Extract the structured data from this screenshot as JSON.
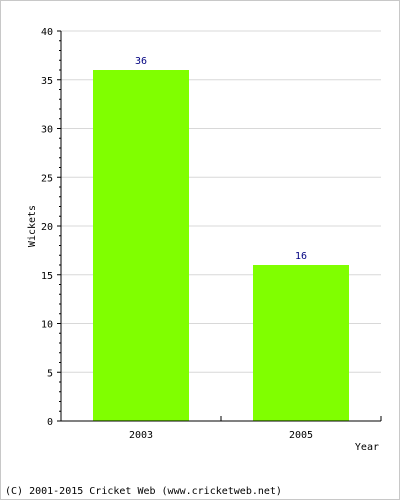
{
  "chart_data": {
    "type": "bar",
    "categories": [
      "2003",
      "2005"
    ],
    "values": [
      36,
      16
    ],
    "data_labels": [
      "36",
      "16"
    ],
    "title": "",
    "xlabel": "Year",
    "ylabel": "Wickets",
    "ylim": [
      0,
      40
    ],
    "yticks": [
      0,
      5,
      10,
      15,
      20,
      25,
      30,
      35,
      40
    ],
    "grid": true,
    "bar_color": "#80ff00",
    "label_color": "#000080",
    "grid_color": "#d8d8d8"
  },
  "footer": "(C) 2001-2015 Cricket Web (www.cricketweb.net)"
}
